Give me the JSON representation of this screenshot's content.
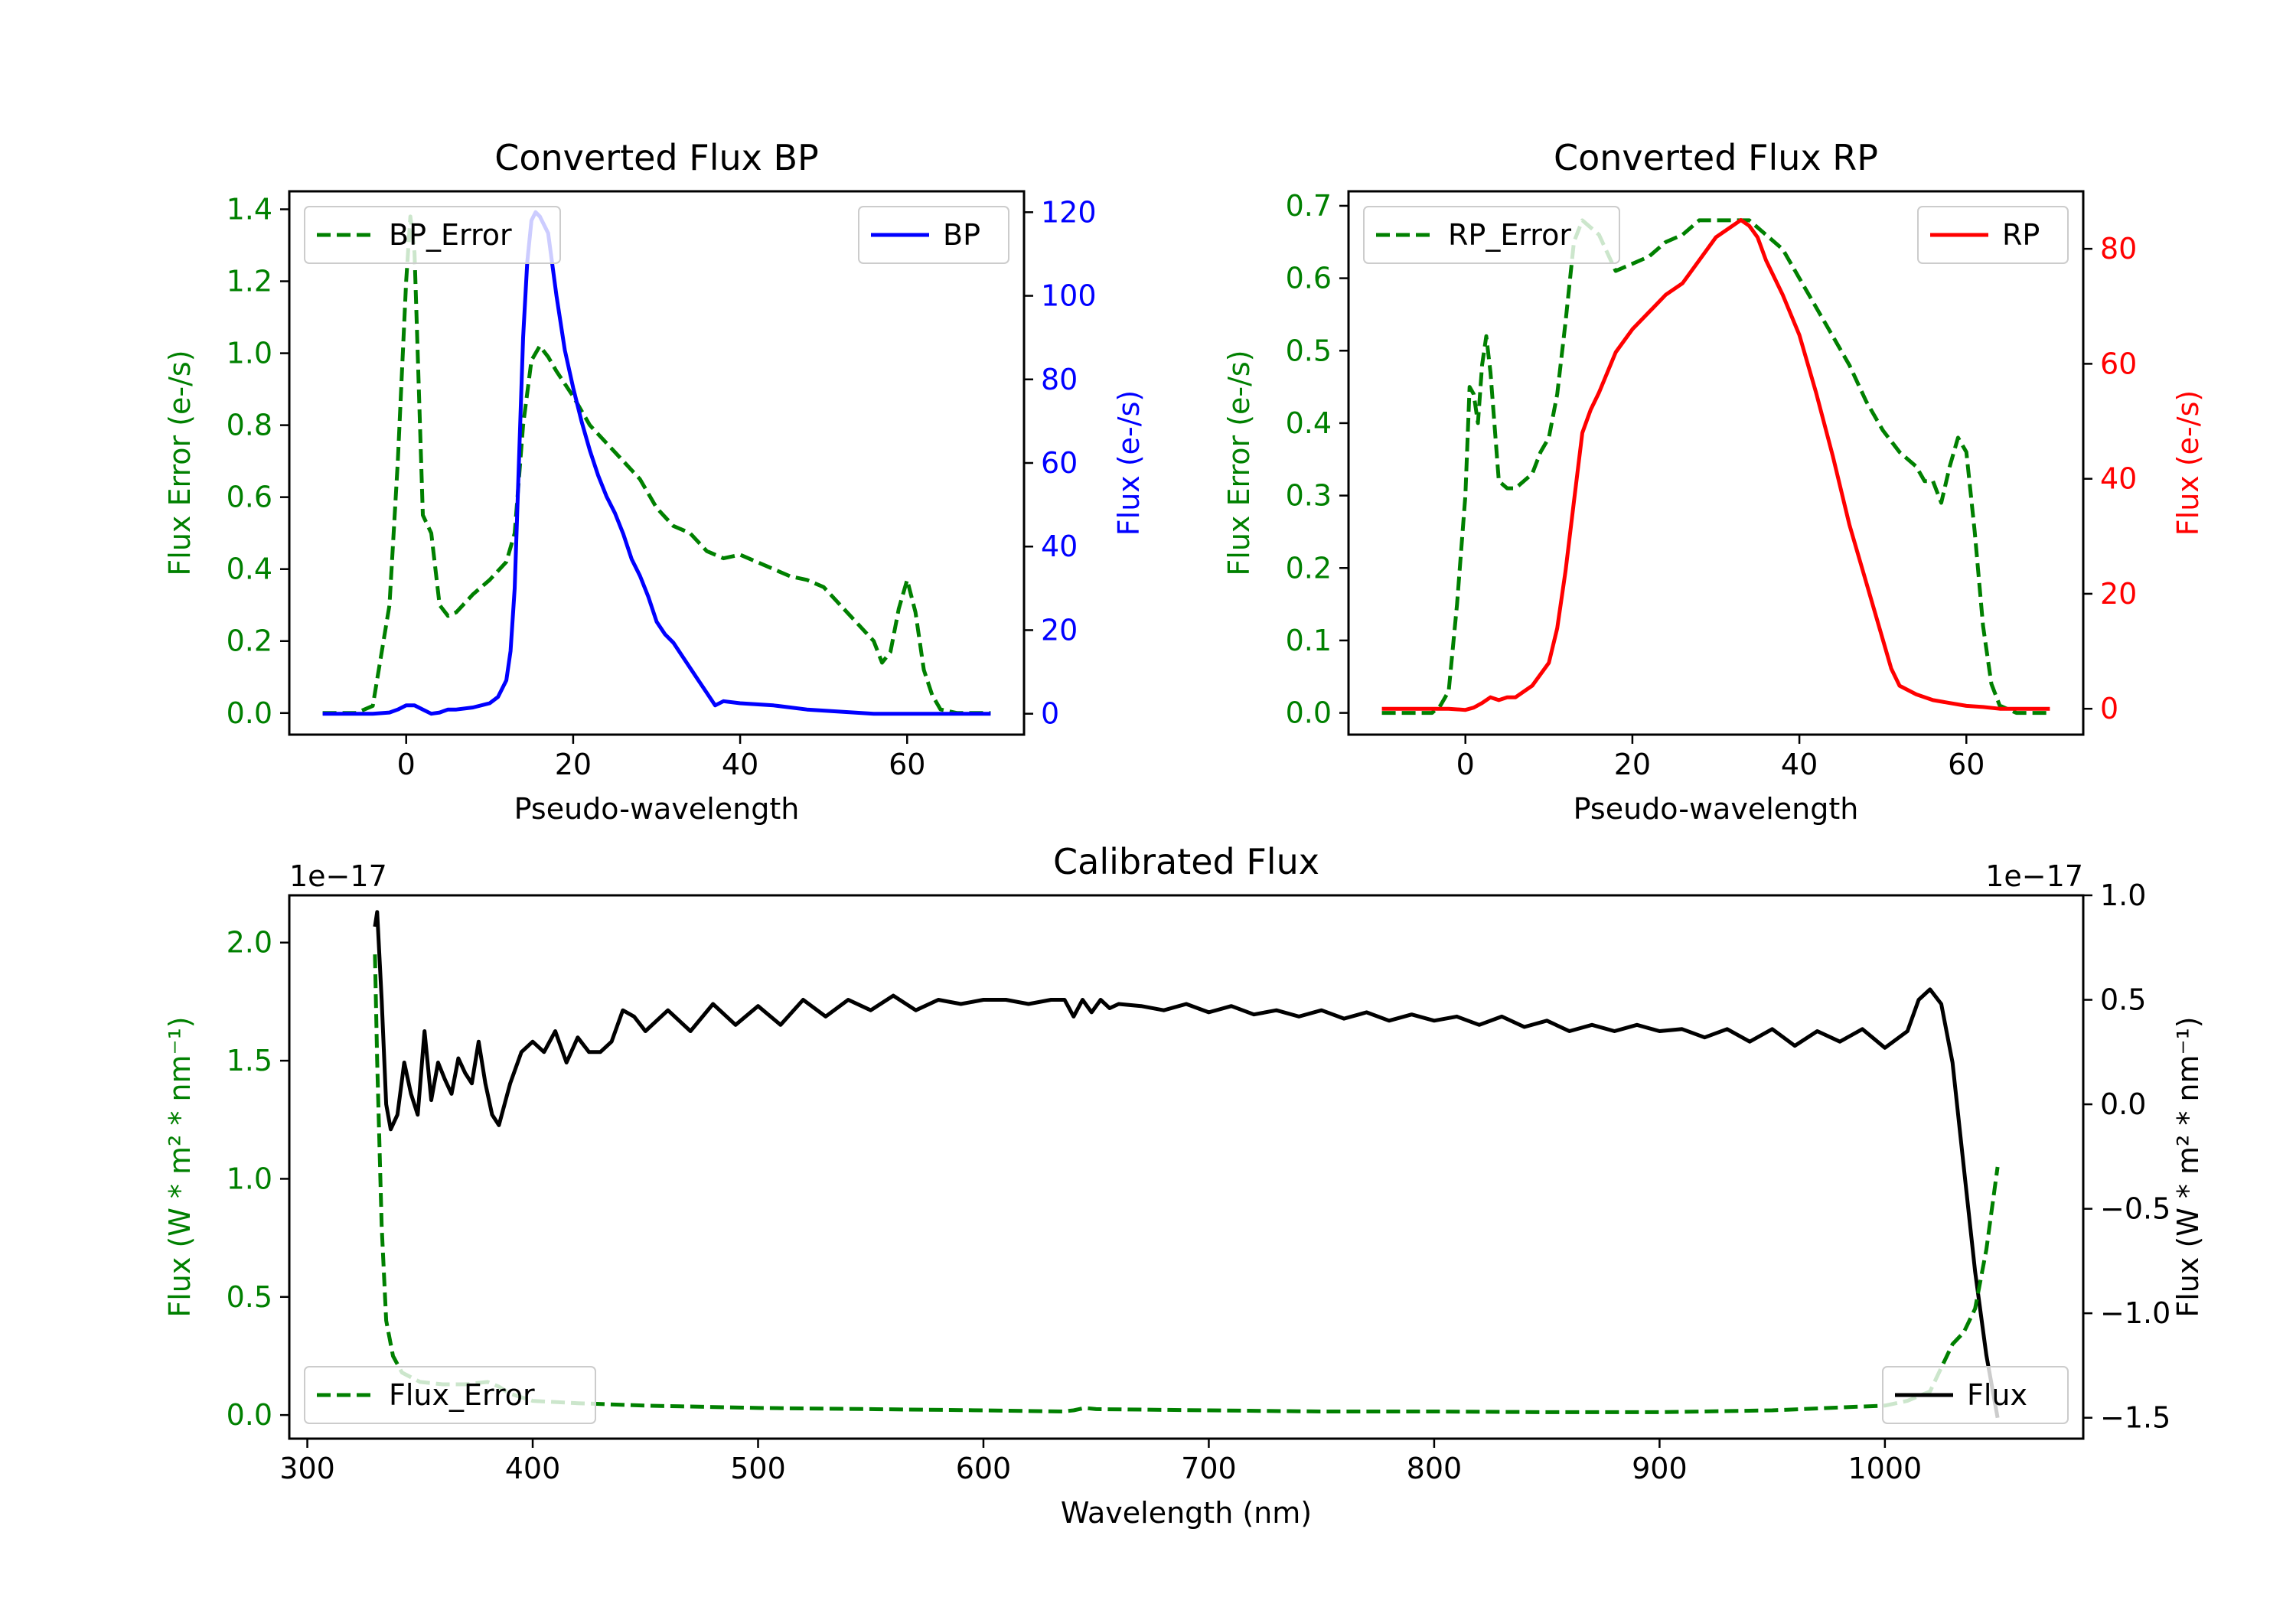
{
  "colors": {
    "bp": "#0000ff",
    "rp": "#ff0000",
    "error": "#008000",
    "flux": "#000000",
    "axis": "#000000"
  },
  "chart_data": [
    {
      "type": "line",
      "title": "Converted Flux BP",
      "xlabel": "Pseudo-wavelength",
      "ylabel_left": "Flux Error (e-/s)",
      "ylabel_right": "Flux (e-/s)",
      "xlim": [
        -14,
        74
      ],
      "ylim_left": [
        -0.06,
        1.45
      ],
      "ylim_right": [
        -5,
        125
      ],
      "xticks": [
        0,
        20,
        40,
        60
      ],
      "yticks_left": [
        0.0,
        0.2,
        0.4,
        0.6,
        0.8,
        1.0,
        1.2,
        1.4
      ],
      "yticks_left_labels": [
        "0.0",
        "0.2",
        "0.4",
        "0.6",
        "0.8",
        "1.0",
        "1.2",
        "1.4"
      ],
      "yticks_right": [
        0,
        20,
        40,
        60,
        80,
        100,
        120
      ],
      "yticks_right_labels": [
        "0",
        "20",
        "40",
        "60",
        "80",
        "100",
        "120"
      ],
      "left_color": "#008000",
      "right_color": "#0000ff",
      "legend_left": "top-left",
      "legend_right": "top-right",
      "series": [
        {
          "name": "BP_Error",
          "axis": "left",
          "style": "dashed",
          "color": "#008000",
          "x": [
            -10,
            -6,
            -4,
            -2,
            -1,
            0,
            0.5,
            1,
            2,
            3,
            4,
            5,
            6,
            8,
            10,
            12,
            13,
            14,
            15,
            16,
            17,
            18,
            20,
            22,
            24,
            26,
            28,
            30,
            32,
            34,
            36,
            38,
            40,
            42,
            44,
            46,
            48,
            50,
            52,
            54,
            56,
            57,
            58,
            59,
            60,
            61,
            62,
            63,
            64,
            66,
            70
          ],
          "values": [
            0.0,
            0.0,
            0.02,
            0.3,
            0.7,
            1.2,
            1.38,
            1.28,
            0.55,
            0.5,
            0.3,
            0.27,
            0.28,
            0.33,
            0.37,
            0.42,
            0.5,
            0.8,
            0.98,
            1.02,
            0.99,
            0.95,
            0.88,
            0.8,
            0.75,
            0.7,
            0.65,
            0.57,
            0.52,
            0.5,
            0.45,
            0.43,
            0.44,
            0.42,
            0.4,
            0.38,
            0.37,
            0.35,
            0.3,
            0.25,
            0.2,
            0.14,
            0.17,
            0.29,
            0.37,
            0.28,
            0.12,
            0.05,
            0.01,
            0.0,
            0.0
          ]
        },
        {
          "name": "BP",
          "axis": "right",
          "style": "solid",
          "color": "#0000ff",
          "x": [
            -10,
            -6,
            -4,
            -2,
            -1,
            0,
            1,
            2,
            3,
            4,
            5,
            6,
            8,
            10,
            11,
            12,
            12.5,
            13,
            13.5,
            14,
            14.5,
            15,
            15.5,
            16,
            17,
            18,
            19,
            20,
            21,
            22,
            23,
            24,
            25,
            26,
            27,
            28,
            29,
            30,
            31,
            32,
            33,
            34,
            35,
            36,
            37,
            38,
            40,
            44,
            48,
            52,
            56,
            60,
            64,
            70
          ],
          "values": [
            0,
            0,
            0,
            0.3,
            1,
            2,
            2,
            1,
            0,
            0.3,
            1,
            1,
            1.5,
            2.5,
            4,
            8,
            15,
            30,
            60,
            90,
            108,
            118,
            120,
            119,
            115,
            100,
            87,
            78,
            70,
            63,
            57,
            52,
            48,
            43,
            37,
            33,
            28,
            22,
            19,
            17,
            14,
            11,
            8,
            5,
            2,
            3,
            2.5,
            2,
            1,
            0.5,
            0,
            0,
            0,
            0
          ]
        }
      ]
    },
    {
      "type": "line",
      "title": "Converted Flux RP",
      "xlabel": "Pseudo-wavelength",
      "ylabel_left": "Flux Error (e-/s)",
      "ylabel_right": "Flux (e-/s)",
      "xlim": [
        -14,
        74
      ],
      "ylim_left": [
        -0.03,
        0.72
      ],
      "ylim_right": [
        -4.5,
        90
      ],
      "xticks": [
        0,
        20,
        40,
        60
      ],
      "yticks_left": [
        0.0,
        0.1,
        0.2,
        0.3,
        0.4,
        0.5,
        0.6,
        0.7
      ],
      "yticks_left_labels": [
        "0.0",
        "0.1",
        "0.2",
        "0.3",
        "0.4",
        "0.5",
        "0.6",
        "0.7"
      ],
      "yticks_right": [
        0,
        20,
        40,
        60,
        80
      ],
      "yticks_right_labels": [
        "0",
        "20",
        "40",
        "60",
        "80"
      ],
      "left_color": "#008000",
      "right_color": "#ff0000",
      "legend_left": "top-left",
      "legend_right": "top-right",
      "series": [
        {
          "name": "RP_Error",
          "axis": "left",
          "style": "dashed",
          "color": "#008000",
          "x": [
            -10,
            -6,
            -4,
            -3,
            -2,
            -1,
            0,
            0.5,
            1,
            1.5,
            2,
            2.5,
            3,
            4,
            5,
            6,
            8,
            9,
            10,
            11,
            12,
            13,
            14,
            15,
            16,
            18,
            20,
            22,
            24,
            26,
            28,
            30,
            32,
            34,
            36,
            38,
            40,
            42,
            44,
            46,
            48,
            50,
            52,
            54,
            55,
            56,
            57,
            58,
            59,
            60,
            61,
            62,
            63,
            64,
            66,
            70
          ],
          "values": [
            0.0,
            0.0,
            0.0,
            0.01,
            0.03,
            0.15,
            0.3,
            0.45,
            0.44,
            0.4,
            0.48,
            0.52,
            0.47,
            0.32,
            0.31,
            0.31,
            0.33,
            0.36,
            0.38,
            0.44,
            0.54,
            0.65,
            0.68,
            0.67,
            0.66,
            0.61,
            0.62,
            0.63,
            0.65,
            0.66,
            0.68,
            0.68,
            0.68,
            0.68,
            0.66,
            0.64,
            0.6,
            0.56,
            0.52,
            0.48,
            0.43,
            0.39,
            0.36,
            0.34,
            0.32,
            0.32,
            0.29,
            0.34,
            0.38,
            0.36,
            0.25,
            0.12,
            0.04,
            0.01,
            0.0,
            0.0
          ]
        },
        {
          "name": "RP",
          "axis": "right",
          "style": "solid",
          "color": "#ff0000",
          "x": [
            -10,
            -6,
            -4,
            -2,
            0,
            1,
            2,
            3,
            4,
            5,
            6,
            8,
            10,
            11,
            12,
            13,
            14,
            15,
            16,
            18,
            20,
            22,
            24,
            26,
            28,
            30,
            32,
            33,
            34,
            35,
            36,
            38,
            40,
            42,
            44,
            46,
            48,
            50,
            51,
            52,
            54,
            56,
            58,
            60,
            62,
            64,
            66,
            70
          ],
          "values": [
            0,
            0,
            0,
            0,
            -0.2,
            0.2,
            1,
            2,
            1.5,
            2,
            2,
            4,
            8,
            14,
            24,
            36,
            48,
            52,
            55,
            62,
            66,
            69,
            72,
            74,
            78,
            82,
            84,
            85,
            84,
            82,
            78,
            72,
            65,
            55,
            44,
            32,
            22,
            12,
            7,
            4,
            2.5,
            1.5,
            1,
            0.5,
            0.3,
            0,
            0,
            0
          ]
        }
      ]
    },
    {
      "type": "line",
      "title": "Calibrated Flux",
      "xlabel": "Wavelength (nm)",
      "ylabel_left": "Flux (W * m² * nm⁻¹)",
      "ylabel_right": "Flux (W * m² * nm⁻¹)",
      "left_offset": "1e−17",
      "right_offset": "1e−17",
      "xlim": [
        292,
        1088
      ],
      "ylim_left": [
        -0.1,
        2.2
      ],
      "ylim_right": [
        -1.6,
        1.0
      ],
      "xticks": [
        300,
        400,
        500,
        600,
        700,
        800,
        900,
        1000
      ],
      "yticks_left": [
        0.0,
        0.5,
        1.0,
        1.5,
        2.0
      ],
      "yticks_left_labels": [
        "0.0",
        "0.5",
        "1.0",
        "1.5",
        "2.0"
      ],
      "yticks_right": [
        -1.5,
        -1.0,
        -0.5,
        0.0,
        0.5,
        1.0
      ],
      "yticks_right_labels": [
        "−1.5",
        "−1.0",
        "−0.5",
        "0.0",
        "0.5",
        "1.0"
      ],
      "left_color": "#008000",
      "right_color": "#000000",
      "legend_left": "bottom-left",
      "legend_right": "bottom-right",
      "series": [
        {
          "name": "Flux",
          "axis": "right",
          "style": "solid",
          "color": "#000000",
          "x": [
            330,
            331,
            333,
            335,
            337,
            340,
            343,
            346,
            349,
            352,
            355,
            358,
            361,
            364,
            367,
            370,
            373,
            376,
            379,
            382,
            385,
            390,
            395,
            400,
            405,
            410,
            415,
            420,
            425,
            430,
            435,
            440,
            445,
            450,
            460,
            470,
            480,
            490,
            500,
            510,
            520,
            530,
            540,
            550,
            560,
            570,
            580,
            590,
            600,
            610,
            620,
            630,
            636,
            640,
            644,
            648,
            652,
            656,
            660,
            670,
            680,
            690,
            700,
            710,
            720,
            730,
            740,
            750,
            760,
            770,
            780,
            790,
            800,
            810,
            820,
            830,
            840,
            850,
            860,
            870,
            880,
            890,
            900,
            910,
            920,
            930,
            940,
            950,
            960,
            970,
            980,
            990,
            1000,
            1010,
            1015,
            1020,
            1025,
            1030,
            1035,
            1040,
            1045,
            1050
          ],
          "values": [
            0.85,
            0.92,
            0.5,
            0.0,
            -0.12,
            -0.05,
            0.2,
            0.05,
            -0.05,
            0.35,
            0.02,
            0.2,
            0.12,
            0.05,
            0.22,
            0.15,
            0.1,
            0.3,
            0.1,
            -0.05,
            -0.1,
            0.1,
            0.25,
            0.3,
            0.25,
            0.35,
            0.2,
            0.32,
            0.25,
            0.25,
            0.3,
            0.45,
            0.42,
            0.35,
            0.45,
            0.35,
            0.48,
            0.38,
            0.47,
            0.38,
            0.5,
            0.42,
            0.5,
            0.45,
            0.52,
            0.45,
            0.5,
            0.48,
            0.5,
            0.5,
            0.48,
            0.5,
            0.5,
            0.42,
            0.5,
            0.44,
            0.5,
            0.46,
            0.48,
            0.47,
            0.45,
            0.48,
            0.44,
            0.47,
            0.43,
            0.45,
            0.42,
            0.45,
            0.41,
            0.44,
            0.4,
            0.43,
            0.4,
            0.42,
            0.38,
            0.42,
            0.37,
            0.4,
            0.35,
            0.38,
            0.35,
            0.38,
            0.35,
            0.36,
            0.32,
            0.36,
            0.3,
            0.36,
            0.28,
            0.35,
            0.3,
            0.36,
            0.27,
            0.35,
            0.5,
            0.55,
            0.48,
            0.2,
            -0.3,
            -0.8,
            -1.2,
            -1.5
          ]
        },
        {
          "name": "Flux_Error",
          "axis": "left",
          "style": "dashed",
          "color": "#008000",
          "x": [
            330,
            331,
            333,
            335,
            338,
            342,
            350,
            360,
            370,
            380,
            385,
            390,
            400,
            420,
            450,
            500,
            550,
            600,
            635,
            640,
            645,
            650,
            700,
            750,
            800,
            850,
            900,
            950,
            1000,
            1010,
            1020,
            1025,
            1030,
            1035,
            1040,
            1045,
            1050
          ],
          "values": [
            1.95,
            1.5,
            0.8,
            0.4,
            0.25,
            0.18,
            0.14,
            0.13,
            0.13,
            0.14,
            0.12,
            0.09,
            0.06,
            0.05,
            0.04,
            0.03,
            0.025,
            0.02,
            0.015,
            0.02,
            0.03,
            0.025,
            0.02,
            0.015,
            0.015,
            0.012,
            0.012,
            0.02,
            0.04,
            0.06,
            0.1,
            0.2,
            0.3,
            0.35,
            0.45,
            0.7,
            1.05
          ]
        }
      ]
    }
  ]
}
